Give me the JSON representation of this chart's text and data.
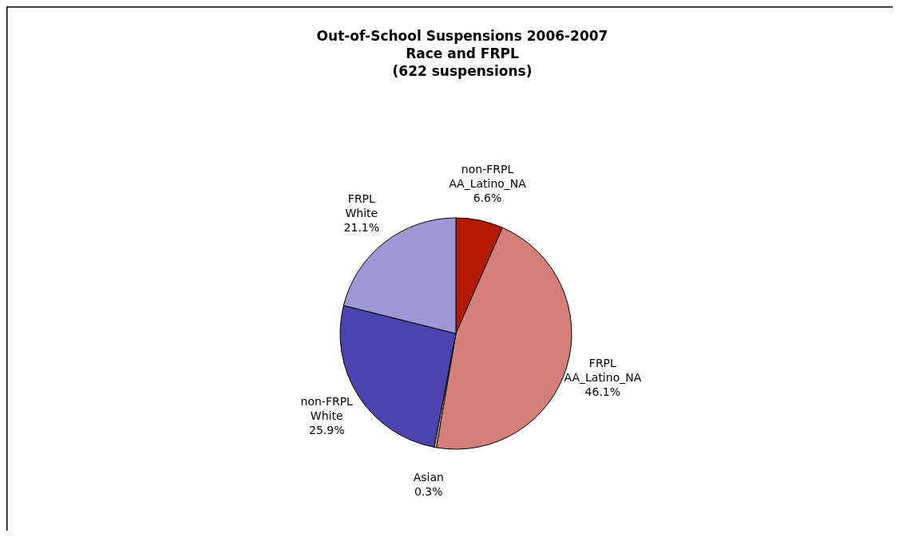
{
  "chart_data": {
    "type": "pie",
    "title": "Out-of-School Suspensions 2006-2007\nRace and FRPL\n(622 suspensions)",
    "categories": [
      "non-FRPL\nAA_Latino_NA",
      "FRPL\nAA_Latino_NA",
      "Asian",
      "non-FRPL\nWhite",
      "FRPL\nWhite"
    ],
    "values": [
      6.6,
      46.1,
      0.3,
      25.9,
      21.1
    ],
    "colors": [
      "#b31b00",
      "#d47f7a",
      "#e6c79a",
      "#4a43b0",
      "#9e98d4"
    ],
    "value_labels": [
      "6.6%",
      "46.1%",
      "0.3%",
      "25.9%",
      "21.1%"
    ]
  }
}
